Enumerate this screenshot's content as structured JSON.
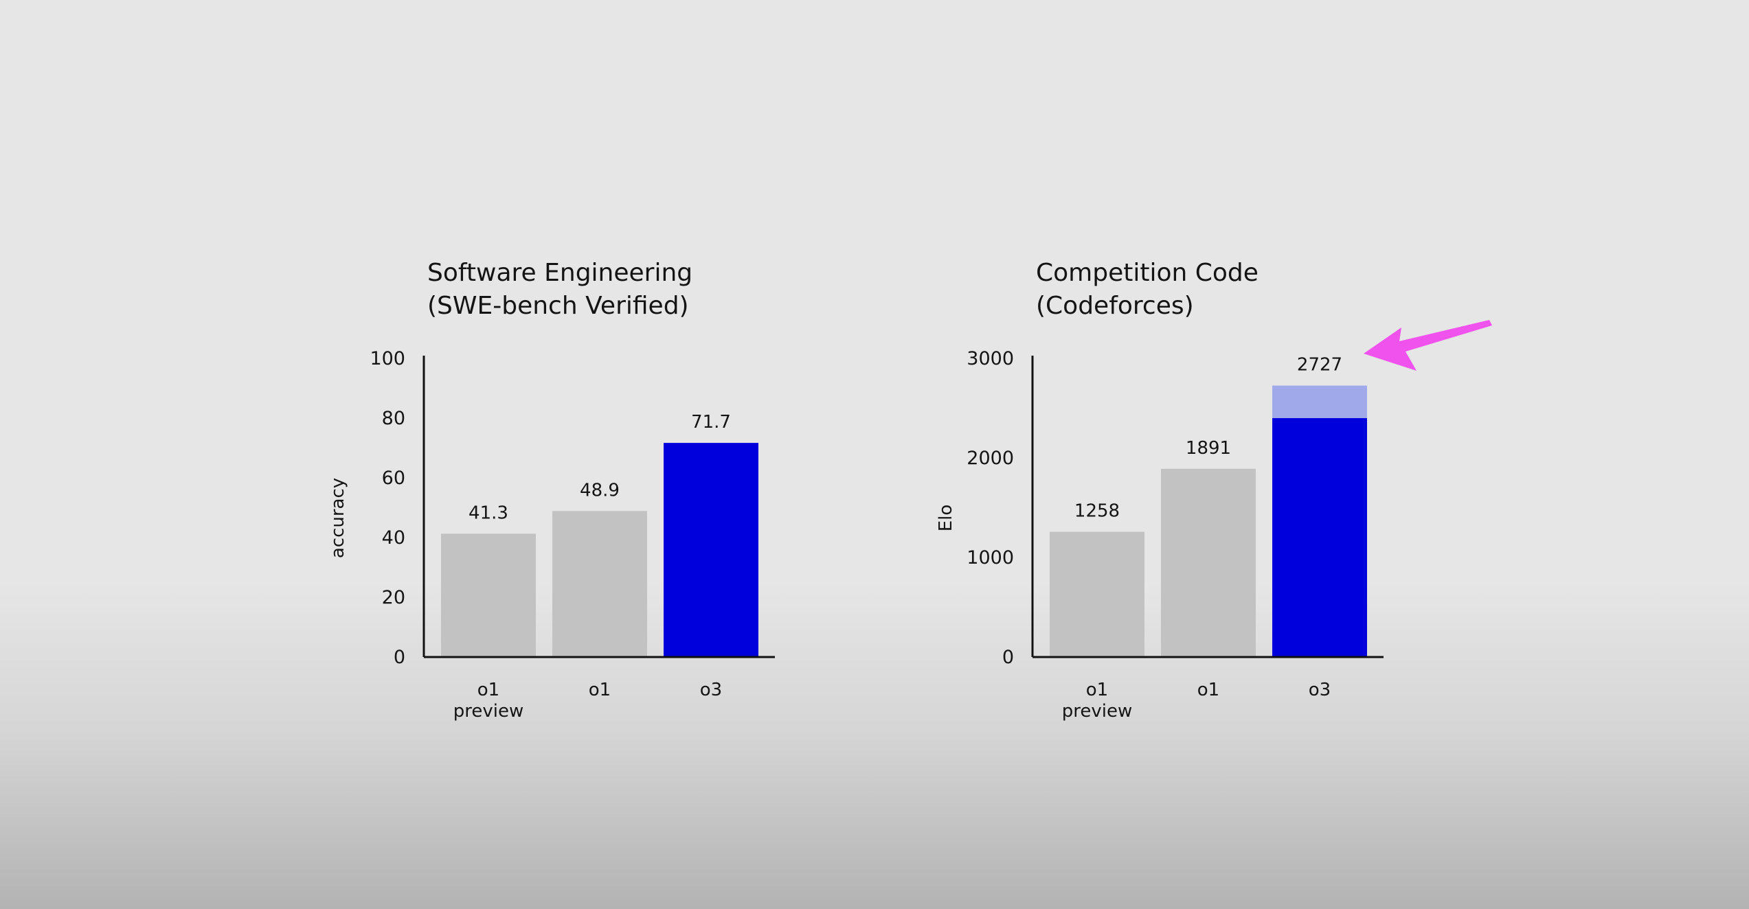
{
  "colors": {
    "baseline_bar": "#c2c2c2",
    "highlight_bar": "#0000dd",
    "highlight_extension": "#a0aaea",
    "axis": "#111111",
    "annotation_arrow": "#f052ee"
  },
  "annotation": {
    "icon": "arrow-pointer-icon"
  },
  "chart_data": [
    {
      "type": "bar",
      "title_lines": [
        "Software Engineering",
        "(SWE-bench Verified)"
      ],
      "ylabel": "accuracy",
      "ylim": [
        0,
        100
      ],
      "yticks": [
        0,
        20,
        40,
        60,
        80,
        100
      ],
      "categories": [
        [
          "o1",
          "preview"
        ],
        [
          "o1"
        ],
        [
          "o3"
        ]
      ],
      "values": [
        41.3,
        48.9,
        71.7
      ],
      "value_labels": [
        "41.3",
        "48.9",
        "71.7"
      ],
      "highlight_index": 2
    },
    {
      "type": "bar",
      "title_lines": [
        "Competition Code",
        "(Codeforces)"
      ],
      "ylabel": "Elo",
      "ylim": [
        0,
        3000
      ],
      "yticks": [
        0,
        1000,
        2000,
        3000
      ],
      "categories": [
        [
          "o1",
          "preview"
        ],
        [
          "o1"
        ],
        [
          "o3"
        ]
      ],
      "values": [
        1258,
        1891,
        2727
      ],
      "value_labels": [
        "1258",
        "1891",
        "2727"
      ],
      "highlight_index": 2,
      "highlight_solid_value": 2400
    }
  ]
}
